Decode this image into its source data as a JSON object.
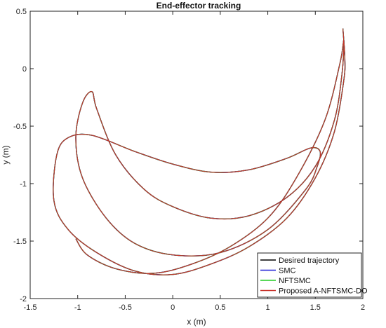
{
  "chart_data": {
    "type": "line",
    "title": "End-effector tracking",
    "xlabel": "x (m)",
    "ylabel": "y (m)",
    "xlim": [
      -1.5,
      2
    ],
    "ylim": [
      -2,
      0.5
    ],
    "xticks": [
      -1.5,
      -1,
      -0.5,
      0,
      0.5,
      1,
      1.5,
      2
    ],
    "yticks": [
      -2,
      -1.5,
      -1,
      -0.5,
      0,
      0.5
    ],
    "xtick_labels": [
      "-1.5",
      "-1",
      "-0.5",
      "0",
      "0.5",
      "1",
      "1.5",
      "2"
    ],
    "ytick_labels": [
      "-2",
      "-1.5",
      "-1",
      "-0.5",
      "0",
      "0.5"
    ],
    "grid": false,
    "legend_position": "bottom-right",
    "series": [
      {
        "name": "Desired trajectory",
        "color": "#000000",
        "x": [
          1.79,
          1.81,
          1.8,
          1.7,
          1.5,
          1.2,
          0.8,
          0.4,
          0.0,
          -0.4,
          -0.8,
          -1.1,
          -1.25,
          -1.22,
          -1.1,
          -0.85,
          -0.4,
          0.0,
          0.4,
          0.8,
          1.2,
          1.45,
          1.55,
          1.52,
          1.4,
          1.0,
          0.5,
          0.0,
          -0.4,
          -0.7,
          -0.95,
          -1.02,
          -0.95,
          -0.85,
          -0.8,
          -0.6,
          -0.3,
          0.0,
          0.4,
          0.8,
          1.2,
          1.5,
          1.7,
          1.78,
          1.8,
          1.76,
          1.6,
          1.3,
          1.0,
          0.6,
          0.2,
          -0.2,
          -0.6,
          -0.9,
          -1.02
        ],
        "y": [
          0.35,
          0.1,
          -0.1,
          -0.55,
          -0.95,
          -1.3,
          -1.55,
          -1.7,
          -1.79,
          -1.76,
          -1.6,
          -1.4,
          -1.15,
          -0.75,
          -0.6,
          -0.58,
          -0.72,
          -0.83,
          -0.9,
          -0.88,
          -0.78,
          -0.69,
          -0.72,
          -0.85,
          -1.05,
          -1.4,
          -1.6,
          -1.62,
          -1.52,
          -1.3,
          -0.95,
          -0.6,
          -0.3,
          -0.2,
          -0.35,
          -0.75,
          -1.05,
          -1.2,
          -1.3,
          -1.28,
          -1.12,
          -0.85,
          -0.45,
          -0.05,
          0.25,
          0.05,
          -0.45,
          -0.95,
          -1.3,
          -1.55,
          -1.7,
          -1.78,
          -1.74,
          -1.62,
          -1.48
        ]
      },
      {
        "name": "SMC",
        "color": "#1f1fd6",
        "x": [],
        "y": []
      },
      {
        "name": "NFTSMC",
        "color": "#22cc22",
        "x": [],
        "y": []
      },
      {
        "name": "Proposed A-NFTSMC-DO",
        "color": "#c8322a",
        "x": [],
        "y": []
      }
    ]
  }
}
